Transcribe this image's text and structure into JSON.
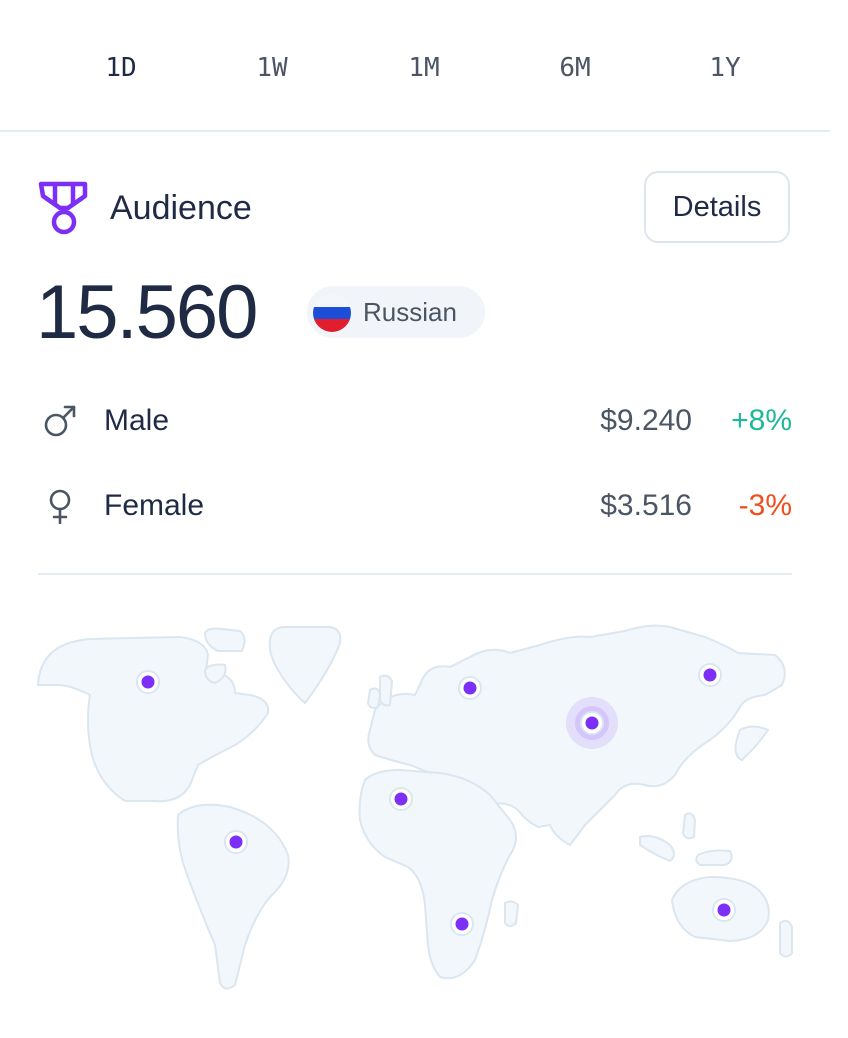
{
  "timeframes": {
    "items": [
      {
        "label": "1D",
        "active": true
      },
      {
        "label": "1W",
        "active": false
      },
      {
        "label": "1M",
        "active": false
      },
      {
        "label": "6M",
        "active": false
      },
      {
        "label": "1Y",
        "active": false
      }
    ]
  },
  "header": {
    "icon": "medal-icon",
    "title": "Audience",
    "details_label": "Details"
  },
  "summary": {
    "total": "15.560",
    "country": "Russian",
    "country_flag": "russia-flag-icon"
  },
  "genders": [
    {
      "icon": "male-icon",
      "label": "Male",
      "value": "$9.240",
      "change": "+8%",
      "trend": "up"
    },
    {
      "icon": "female-icon",
      "label": "Female",
      "value": "$3.516",
      "change": "-3%",
      "trend": "down"
    }
  ],
  "map": {
    "markers": 8,
    "highlighted_region": "Russia"
  },
  "colors": {
    "accent": "#7b2ff7",
    "positive": "#1fb89a",
    "negative": "#f04e1d",
    "text_primary": "#1f2a44",
    "text_secondary": "#4b5563",
    "border": "#dde6ef",
    "map_fill": "#f2f7fc",
    "map_stroke": "#dbe6f0"
  }
}
